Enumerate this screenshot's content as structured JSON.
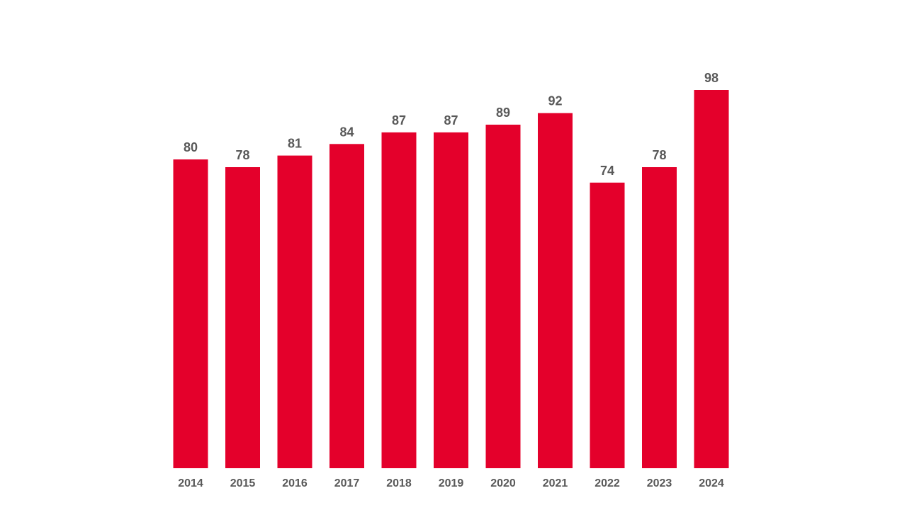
{
  "chart_data": {
    "type": "bar",
    "title": "",
    "xlabel": "",
    "ylabel": "",
    "categories": [
      "2014",
      "2015",
      "2016",
      "2017",
      "2018",
      "2019",
      "2020",
      "2021",
      "2022",
      "2023",
      "2024"
    ],
    "values": [
      80,
      78,
      81,
      84,
      87,
      87,
      89,
      92,
      74,
      78,
      98
    ],
    "ylim": [
      0,
      98
    ],
    "grid": false,
    "legend": "none",
    "data_labels": true,
    "bar_color": "#E4002B",
    "label_color": "#595959"
  }
}
